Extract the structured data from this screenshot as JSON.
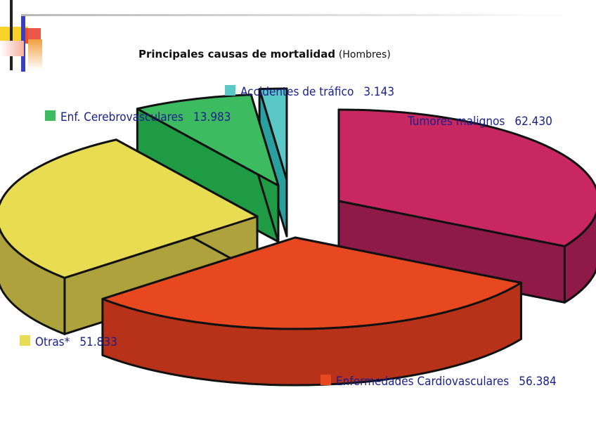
{
  "title": {
    "main": "Principales causas de mortalidad",
    "sub": "(Hombres)"
  },
  "chart_data": {
    "type": "pie",
    "title": "Principales causas de mortalidad (Hombres)",
    "slices": [
      {
        "label": "Tumores malignos",
        "value": 62430,
        "value_text": "62.430",
        "color": "#c8285f",
        "side": "#8f1a47"
      },
      {
        "label": "Enfermedades Cardiovasculares",
        "value": 56384,
        "value_text": "56.384",
        "color": "#e84820",
        "side": "#b8321a"
      },
      {
        "label": "Otras*",
        "value": 51833,
        "value_text": "51.833",
        "color": "#e8dc52",
        "side": "#aea23c"
      },
      {
        "label": "Enf. Cerebrovasculares",
        "value": 13983,
        "value_text": "13.983",
        "color": "#3dbb60",
        "side": "#1f9a45"
      },
      {
        "label": "Accidentes de tráfico",
        "value": 3143,
        "value_text": "3.143",
        "color": "#5bc8c8",
        "side": "#2a9fa0"
      }
    ],
    "label_color": "#1a1f8a",
    "exploded": true,
    "three_d": true
  }
}
